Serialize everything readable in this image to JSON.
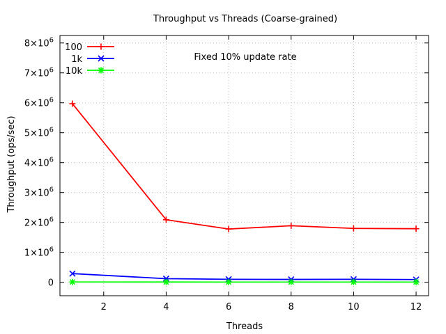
{
  "chart_data": {
    "type": "line",
    "title": "Throughput vs Threads (Coarse-grained)",
    "xlabel": "Threads",
    "ylabel": "Throughput (ops/sec)",
    "annotation": "Fixed 10% update rate",
    "xlim": [
      0.6,
      12.4
    ],
    "ylim": [
      -450000,
      8250000
    ],
    "x_ticks": [
      2,
      4,
      6,
      8,
      10,
      12
    ],
    "y_ticks": [
      {
        "value": 0,
        "label": "0",
        "exp": ""
      },
      {
        "value": 1000000,
        "label": "1×10",
        "exp": "6"
      },
      {
        "value": 2000000,
        "label": "2×10",
        "exp": "6"
      },
      {
        "value": 3000000,
        "label": "3×10",
        "exp": "6"
      },
      {
        "value": 4000000,
        "label": "4×10",
        "exp": "6"
      },
      {
        "value": 5000000,
        "label": "5×10",
        "exp": "6"
      },
      {
        "value": 6000000,
        "label": "6×10",
        "exp": "6"
      },
      {
        "value": 7000000,
        "label": "7×10",
        "exp": "6"
      },
      {
        "value": 8000000,
        "label": "8×10",
        "exp": "6"
      }
    ],
    "grid": true,
    "legend_position": "top-left",
    "x": [
      1,
      4,
      6,
      8,
      10,
      12
    ],
    "series": [
      {
        "name": "100",
        "color": "#ff0000",
        "marker": "plus",
        "values": [
          5970000,
          2090000,
          1780000,
          1890000,
          1800000,
          1790000
        ]
      },
      {
        "name": "1k",
        "color": "#0000ff",
        "marker": "cross",
        "values": [
          290000,
          120000,
          100000,
          95000,
          100000,
          90000
        ]
      },
      {
        "name": "10k",
        "color": "#00ff00",
        "marker": "star",
        "values": [
          10000,
          8000,
          7000,
          7000,
          7000,
          7000
        ]
      }
    ]
  }
}
